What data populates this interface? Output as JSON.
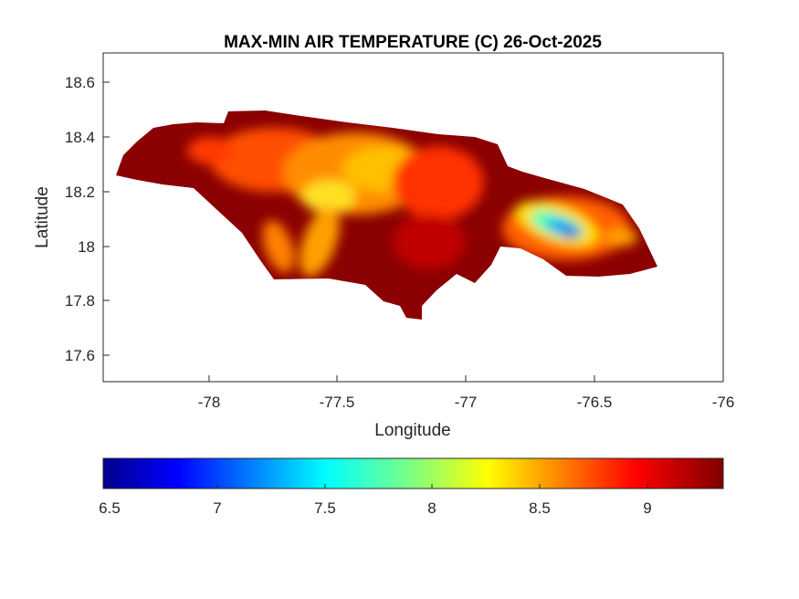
{
  "chart_data": {
    "type": "heatmap",
    "subtype": "filled-contour-map",
    "title": "MAX-MIN AIR TEMPERATURE (C) 26-Oct-2025",
    "xlabel": "Longitude",
    "ylabel": "Latitude",
    "xlim": [
      -78.41,
      -76
    ],
    "ylim": [
      17.5,
      18.7
    ],
    "xticks": [
      -78,
      -77.5,
      -77,
      -76.5,
      -76
    ],
    "xtick_labels": [
      "-78",
      "-77.5",
      "-77",
      "-76.5",
      "-76"
    ],
    "yticks": [
      17.6,
      17.8,
      18,
      18.2,
      18.4,
      18.6
    ],
    "ytick_labels": [
      "17.6",
      "17.8",
      "18",
      "18.2",
      "18.4",
      "18.6"
    ],
    "grid": false,
    "colormap": "jet",
    "colorbar": {
      "location": "bottom",
      "range": [
        6.47,
        9.36
      ],
      "ticks": [
        6.5,
        7,
        7.5,
        8,
        8.5,
        9
      ],
      "tick_labels": [
        "6.5",
        "7",
        "7.5",
        "8",
        "8.5",
        "9"
      ]
    },
    "region": "Jamaica",
    "value_range_shown": [
      6.6,
      9.36
    ],
    "notes_visible": {
      "minimum_area": "eastern highlands near -76.6, 18.05 (blue, ~6.8)",
      "dominant": "dark red to orange (8.6-9.3) across most of the island"
    }
  }
}
